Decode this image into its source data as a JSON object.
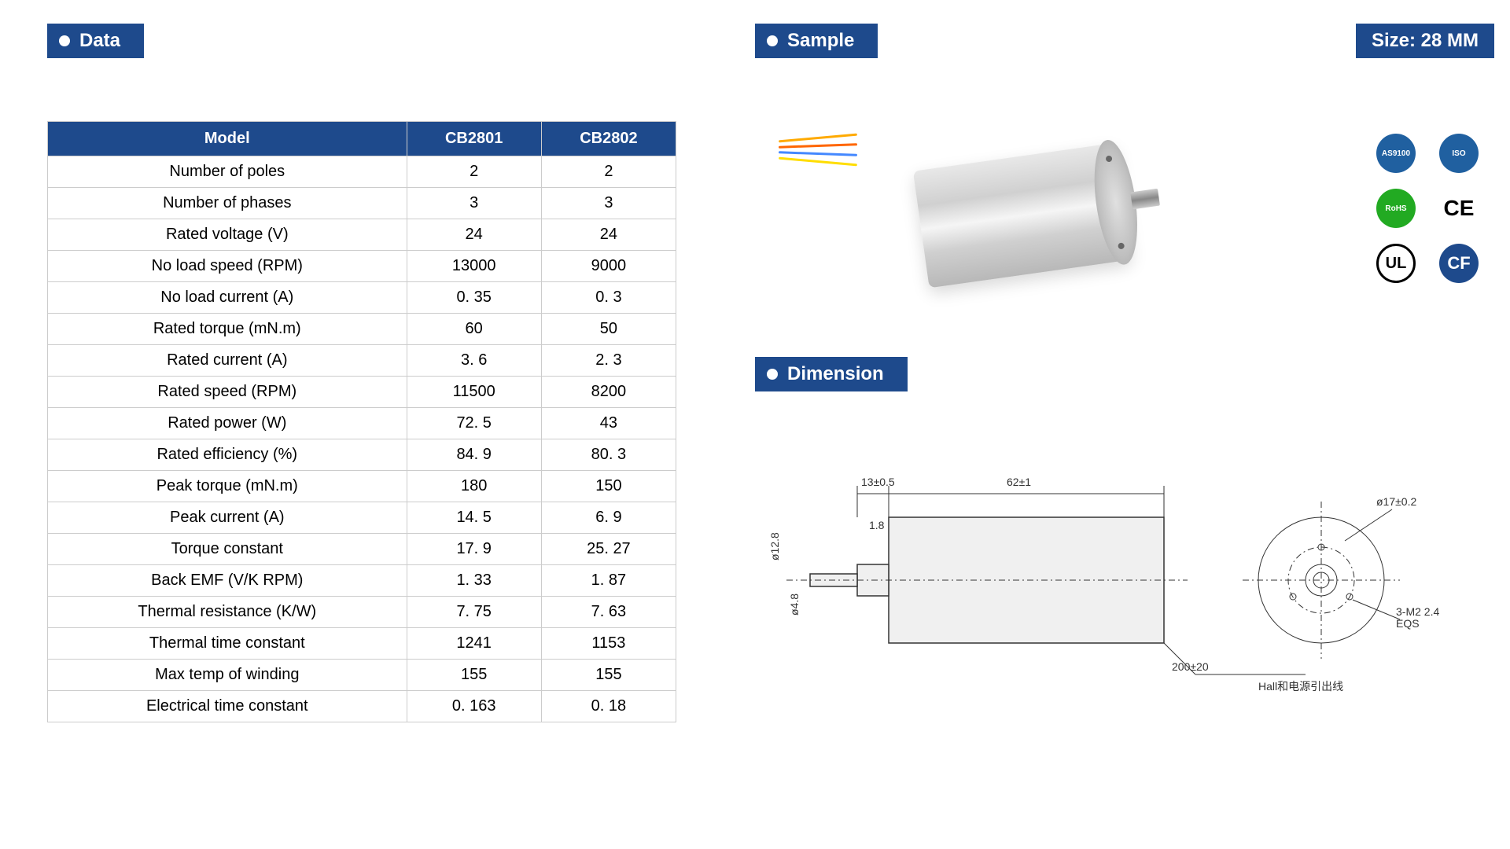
{
  "headers": {
    "data": "Data",
    "sample": "Sample",
    "dimension": "Dimension",
    "size": "Size:  28 MM"
  },
  "colors": {
    "primary": "#1e4a8c",
    "white": "#ffffff",
    "border": "#cccccc"
  },
  "table": {
    "columns": [
      "Model",
      "CB2801",
      "CB2802"
    ],
    "rows": [
      [
        "Number of poles",
        "2",
        "2"
      ],
      [
        "Number of phases",
        "3",
        "3"
      ],
      [
        "Rated  voltage (V)",
        "24",
        "24"
      ],
      [
        "No load speed (RPM)",
        "13000",
        "9000"
      ],
      [
        "No load current (A)",
        "0. 35",
        "0. 3"
      ],
      [
        "Rated torque (mN.m)",
        "60",
        "50"
      ],
      [
        "Rated current (A)",
        "3. 6",
        "2. 3"
      ],
      [
        "Rated speed (RPM)",
        "11500",
        "8200"
      ],
      [
        "Rated power (W)",
        "72. 5",
        "43"
      ],
      [
        "Rated efficiency (%)",
        "84. 9",
        "80. 3"
      ],
      [
        "Peak torque (mN.m)",
        "180",
        "150"
      ],
      [
        "Peak current (A)",
        "14. 5",
        "6. 9"
      ],
      [
        "Torque constant",
        "17. 9",
        "25. 27"
      ],
      [
        "Back EMF (V/K RPM)",
        "1. 33",
        "1. 87"
      ],
      [
        "Thermal resistance (K/W)",
        "7. 75",
        "7. 63"
      ],
      [
        "Thermal time constant",
        "1241",
        "1153"
      ],
      [
        "Max temp of winding",
        "155",
        "155"
      ],
      [
        "Electrical time constant",
        "0. 163",
        "0. 18"
      ]
    ]
  },
  "certifications": {
    "as9100": "AS9100",
    "iso": "ISO",
    "rohs": "RoHS",
    "ce": "CE",
    "ul": "UL",
    "cf": "CF"
  },
  "dimension_drawing": {
    "labels": {
      "top_left": "13±0.5",
      "top_right": "62±1",
      "mid_left": "1.8",
      "left_dia1": "ø12.8",
      "left_dia2": "ø4.8",
      "bottom_wire": "200±20",
      "bottom_note": "Hall和电源引出线",
      "right_dia": "ø17±0.2",
      "right_screw": "3-M2 2.4\nEQS"
    },
    "body_width": 350,
    "body_height": 160,
    "shaft_length": 70,
    "face_diameter": 160
  }
}
